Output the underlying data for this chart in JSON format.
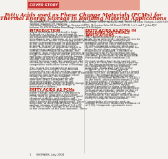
{
  "cover_label": "COVER STORY",
  "title_line1": "Fatty Acids used as Phase Change Materials (PCMs) for",
  "title_line2": "Thermal Energy Storage in Building Material Applications",
  "authors": "By: Chuah T. G.¹, Rozanna D.¹, Zuhaida A.¹, Thomas Choong S. Y.¹ and Sa’ari M.²",
  "affiliations": [
    "¹Department of Chemical and Environmental Engineering, Faculty of Engineering, Universiti Putra Malaysia 43400 UPM",
    "Serdang, Selangor DE, Malaysia.",
    "²Advanced (Biorefinery) Technology Division (ABTD), Malaysian Palm Oil Board (MPOB) Lot 6 and 7, Jalan PJS/",
    "Industri 10, 47610 Bandar Baru Bangi, Selangor D.E Malaysia."
  ],
  "intro_heading": "INTRODUCTION",
  "fatty_heading": "FATTY ACIDS AS PCMs",
  "col2_heading_lines": [
    "FATTY ACIDS AS PCMs IN",
    "BUILDING MATERIALS",
    "APPLICATIONS"
  ],
  "intro_lines": [
    "Rapid development has lead to huge",
    "demand on energy. In an attempt to",
    "conserve energy and reduce dependency",
    "on fossil fuels and also to reduce the",
    "greenhouse gas emissions, it is essential to",
    "seek effective means of reducing peaks in",
    "power consumption and to shift portions",
    "of the load from periods of maximum",
    "demand. Storage of thermal energy,",
    "hence, becomes an important aspect in",
    "engineering applications, especially in",
    "energy conservation in buildings. For",
    "example, heat collected during periods of",
    "bright sunshine can be stored, preserved",
    "and later released for utilization during",
    "the night or other energy systems. Heat",
    "storage can also be applied in buildings",
    "where heating needs are significant and",
    "electricity rates allow heat storage to be",
    "competitive with other forms of heating.",
    "",
    "The search for suitable heat storage",
    "materials has recently been directed",
    "towards the use of low melting organic",
    "materials in an effort to avoid some of the",
    "problems inherent in inorganic phase",
    "change materials, for example",
    "supercooling and segregation. An",
    "overview of the literature on the",
    "characterization, application and",
    "limitations of fatty acids as phase change",
    "material (PCMs) energy storage is",
    "presented as follows."
  ],
  "fatty_lines": [
    "Fatty acids are one of the organic",
    "phase change materials. They possess",
    "some superior properties over other",
    "PCMs such as melting congruency, good",
    "chemical stability, non-toxicity and",
    "suitable melting temperature range for",
    "other passive heating applications. These",
    "materials, in their liquid phase, have a",
    "surface tension of the order of 2.8 x10ⁿ",
    "N/m that is high enough to be retained",
    "in the structure of the host material. These"
  ],
  "col2_body_lines": [
    "The characteristics of PCMs have",
    "made them inherently suitable for use in",
    "buildings for energy conservation",
    "purposes without the complications",
    "brought about by other thermal storage",
    "devices requiring separate plant and",
    "space. Solid/liquid transitions within the",
    "pores do not cause any leaking of",
    "materials in wallboard. Concepts of",
    "wallboard with PCMs thermal energy",
    "storage have been receiving increasing",
    "attention, particularly in countries with",
    "fluctuating climatic conditions [3].",
    "",
    "Several studies have been carried out",
    "in order to study the thermal properties",
    "of the binary mixtures of fatty acid and",
    "its compatibility with the building",
    "materials. Study that carried out by",
    "Feldman et al. [5] found gypsum",
    "wallboard to be compatible with a broad",
    "range of PCMs, including fatty acids and",
    "waxes. The compatibility of concrete",
    "blocks is basically dependent on the",
    "presence of calcium hydroxide (Ca(OH)₂)",
    "in the block, since certain organic PCMs",
    "will react with it. Feldman et al. [7] also",
    "demonstrated that a mixture of 26%",
    "methyl palmitate and 66% methyl",
    "stearate provided a sharp solid-liquid",
    "phase transition at ambient temperature",
    "with a latent enthalpy similar to that of",
    "paraffins; this mixture is one of many",
    "possible derivatives of fats and oils.",
    "Unfortunately, the highly refined methyl",
    "palmitate and methyl stearate are too",
    "costly to compete with paraffins.",
    "",
    "Compatibility of concrete with an",
    "organic PCM were studied by Feldman et",
    "al. [10]. Composite specimens were"
  ],
  "header_bg": "#e8a090",
  "cover_bg": "#c43030",
  "cover_text_color": "#ffffff",
  "title_color": "#bb1100",
  "section_heading_color": "#bb1100",
  "body_color": "#222222",
  "page_bg": "#f4f2ee",
  "divider_color": "#bbbbbb",
  "page_number": "1",
  "journal_name": "BIOMASS, July 2004"
}
